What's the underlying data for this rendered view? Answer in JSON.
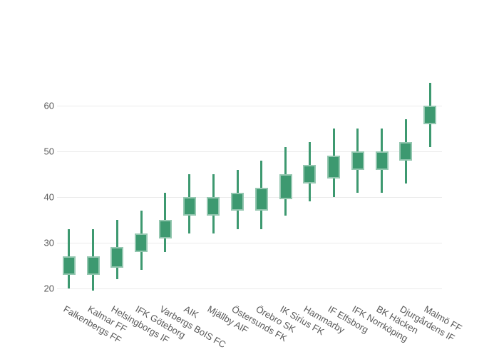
{
  "chart_data": {
    "type": "candlestick",
    "title": "",
    "xlabel": "",
    "ylabel": "",
    "categories": [
      "Falkenbergs FF",
      "Kalmar FF",
      "Helsingborgs IF",
      "IFK Göteborg",
      "Varbergs BoIS FC",
      "AIK",
      "Mjällby AIF",
      "Östersunds FK",
      "Örebro SK",
      "IK Sirius FK",
      "Hammarby",
      "IF Elfsborg",
      "IFK Norrköping",
      "BK Häcken",
      "Djurgårdens IF",
      "Malmö FF"
    ],
    "low": [
      20,
      19.5,
      22,
      24,
      28,
      32,
      32,
      33,
      33,
      36,
      39,
      40,
      41,
      41,
      43,
      51
    ],
    "open": [
      23,
      23,
      24.5,
      28,
      31,
      36,
      36,
      37,
      37,
      39.5,
      43,
      44,
      46,
      46,
      48,
      56
    ],
    "close": [
      27,
      27,
      29,
      32,
      35,
      40,
      40,
      41,
      42,
      45,
      47,
      49,
      50,
      50,
      52,
      60
    ],
    "high": [
      33,
      33,
      35,
      37,
      41,
      45,
      45,
      46,
      48,
      51,
      52,
      55,
      55,
      55,
      57,
      65
    ],
    "yticks": [
      20,
      30,
      40,
      50,
      60
    ],
    "ylim": [
      17.5,
      67.5
    ],
    "grid": true,
    "legend": "none",
    "xtick_angle_deg": 30,
    "colors": {
      "candle_fill": "#3d9970",
      "candle_border": "#94c7b0",
      "grid": "#ebebeb",
      "tick_text": "#595959",
      "background": "#ffffff"
    }
  }
}
